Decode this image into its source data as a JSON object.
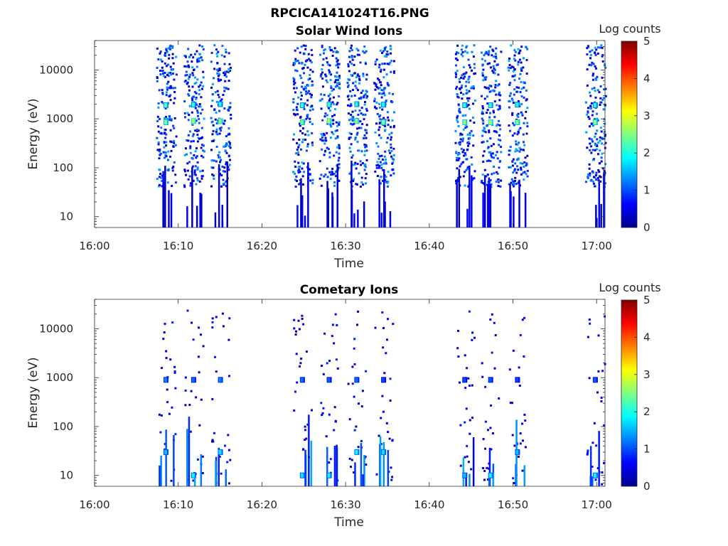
{
  "figure": {
    "title": "RPCICA141024T16.PNG"
  },
  "colorbar": {
    "label": "Log counts",
    "min": 0,
    "max": 5,
    "ticks": [
      "0",
      "1",
      "2",
      "3",
      "4",
      "5"
    ],
    "colormap": "jet",
    "colors": [
      "#00008f",
      "#0000ff",
      "#0080ff",
      "#00ffff",
      "#80ff80",
      "#ffff00",
      "#ff8000",
      "#ff0000",
      "#800000"
    ]
  },
  "chart_data": [
    {
      "type": "heatmap",
      "title": "Solar Wind Ions",
      "xlabel": "Time",
      "ylabel": "Energy (eV)",
      "xlim": [
        "16:00",
        "17:01"
      ],
      "xticks": [
        "16:00",
        "16:10",
        "16:20",
        "16:30",
        "16:40",
        "16:50",
        "17:00"
      ],
      "ylim": [
        6,
        40000
      ],
      "yscale": "log",
      "yticks": [
        "10",
        "100",
        "1000",
        "10000"
      ],
      "bursts": [
        {
          "time": "16:08.5",
          "peaks": [
            {
              "energy": 850,
              "log_counts": 2.6
            },
            {
              "energy": 1900,
              "log_counts": 2.3
            }
          ]
        },
        {
          "time": "16:11.8",
          "peaks": [
            {
              "energy": 900,
              "log_counts": 2.8
            },
            {
              "energy": 1950,
              "log_counts": 2.1
            }
          ]
        },
        {
          "time": "16:15.0",
          "peaks": [
            {
              "energy": 900,
              "log_counts": 2.7
            },
            {
              "energy": 2000,
              "log_counts": 2.0
            }
          ]
        },
        {
          "time": "16:24.8",
          "peaks": [
            {
              "energy": 850,
              "log_counts": 2.6
            },
            {
              "energy": 1900,
              "log_counts": 2.2
            }
          ]
        },
        {
          "time": "16:28.0",
          "peaks": [
            {
              "energy": 900,
              "log_counts": 2.8
            },
            {
              "energy": 1950,
              "log_counts": 2.2
            }
          ]
        },
        {
          "time": "16:31.3",
          "peaks": [
            {
              "energy": 900,
              "log_counts": 2.7
            },
            {
              "energy": 2000,
              "log_counts": 2.1
            }
          ]
        },
        {
          "time": "16:34.5",
          "peaks": [
            {
              "energy": 850,
              "log_counts": 2.6
            },
            {
              "energy": 1950,
              "log_counts": 2.0
            }
          ]
        },
        {
          "time": "16:44.2",
          "peaks": [
            {
              "energy": 850,
              "log_counts": 2.7
            },
            {
              "energy": 1900,
              "log_counts": 2.1
            }
          ]
        },
        {
          "time": "16:47.3",
          "peaks": [
            {
              "energy": 850,
              "log_counts": 2.8
            },
            {
              "energy": 1900,
              "log_counts": 2.2
            }
          ]
        },
        {
          "time": "16:50.5",
          "peaks": [
            {
              "energy": 850,
              "log_counts": 2.6
            },
            {
              "energy": 1950,
              "log_counts": 2.0
            }
          ]
        },
        {
          "time": "16:59.8",
          "peaks": [
            {
              "energy": 850,
              "log_counts": 2.7
            },
            {
              "energy": 1900,
              "log_counts": 2.1
            }
          ]
        }
      ]
    },
    {
      "type": "heatmap",
      "title": "Cometary Ions",
      "xlabel": "Time",
      "ylabel": "Energy (eV)",
      "xlim": [
        "16:00",
        "17:01"
      ],
      "xticks": [
        "16:00",
        "16:10",
        "16:20",
        "16:30",
        "16:40",
        "16:50",
        "17:00"
      ],
      "ylim": [
        6,
        40000
      ],
      "yscale": "log",
      "yticks": [
        "10",
        "100",
        "1000",
        "10000"
      ],
      "bursts": [
        {
          "time": "16:08.5",
          "peaks": [
            {
              "energy": 900,
              "log_counts": 1.3
            },
            {
              "energy": 30,
              "log_counts": 1.6
            }
          ]
        },
        {
          "time": "16:11.8",
          "peaks": [
            {
              "energy": 900,
              "log_counts": 1.2
            },
            {
              "energy": 10,
              "log_counts": 1.9
            }
          ]
        },
        {
          "time": "16:15.0",
          "peaks": [
            {
              "energy": 900,
              "log_counts": 1.3
            },
            {
              "energy": 30,
              "log_counts": 1.8
            }
          ]
        },
        {
          "time": "16:24.8",
          "peaks": [
            {
              "energy": 900,
              "log_counts": 1.2
            },
            {
              "energy": 10,
              "log_counts": 1.8
            }
          ]
        },
        {
          "time": "16:28.0",
          "peaks": [
            {
              "energy": 900,
              "log_counts": 1.1
            },
            {
              "energy": 10,
              "log_counts": 1.9
            }
          ]
        },
        {
          "time": "16:31.3",
          "peaks": [
            {
              "energy": 900,
              "log_counts": 1.2
            },
            {
              "energy": 30,
              "log_counts": 1.9
            }
          ]
        },
        {
          "time": "16:34.5",
          "peaks": [
            {
              "energy": 900,
              "log_counts": 1.0
            },
            {
              "energy": 30,
              "log_counts": 1.8
            }
          ]
        },
        {
          "time": "16:44.2",
          "peaks": [
            {
              "energy": 900,
              "log_counts": 1.0
            },
            {
              "energy": 10,
              "log_counts": 1.6
            }
          ]
        },
        {
          "time": "16:47.3",
          "peaks": [
            {
              "energy": 900,
              "log_counts": 1.1
            },
            {
              "energy": 10,
              "log_counts": 1.9
            }
          ]
        },
        {
          "time": "16:50.5",
          "peaks": [
            {
              "energy": 900,
              "log_counts": 1.0
            },
            {
              "energy": 30,
              "log_counts": 1.6
            }
          ]
        },
        {
          "time": "16:59.8",
          "peaks": [
            {
              "energy": 900,
              "log_counts": 1.1
            },
            {
              "energy": 10,
              "log_counts": 1.9
            }
          ]
        }
      ]
    }
  ]
}
